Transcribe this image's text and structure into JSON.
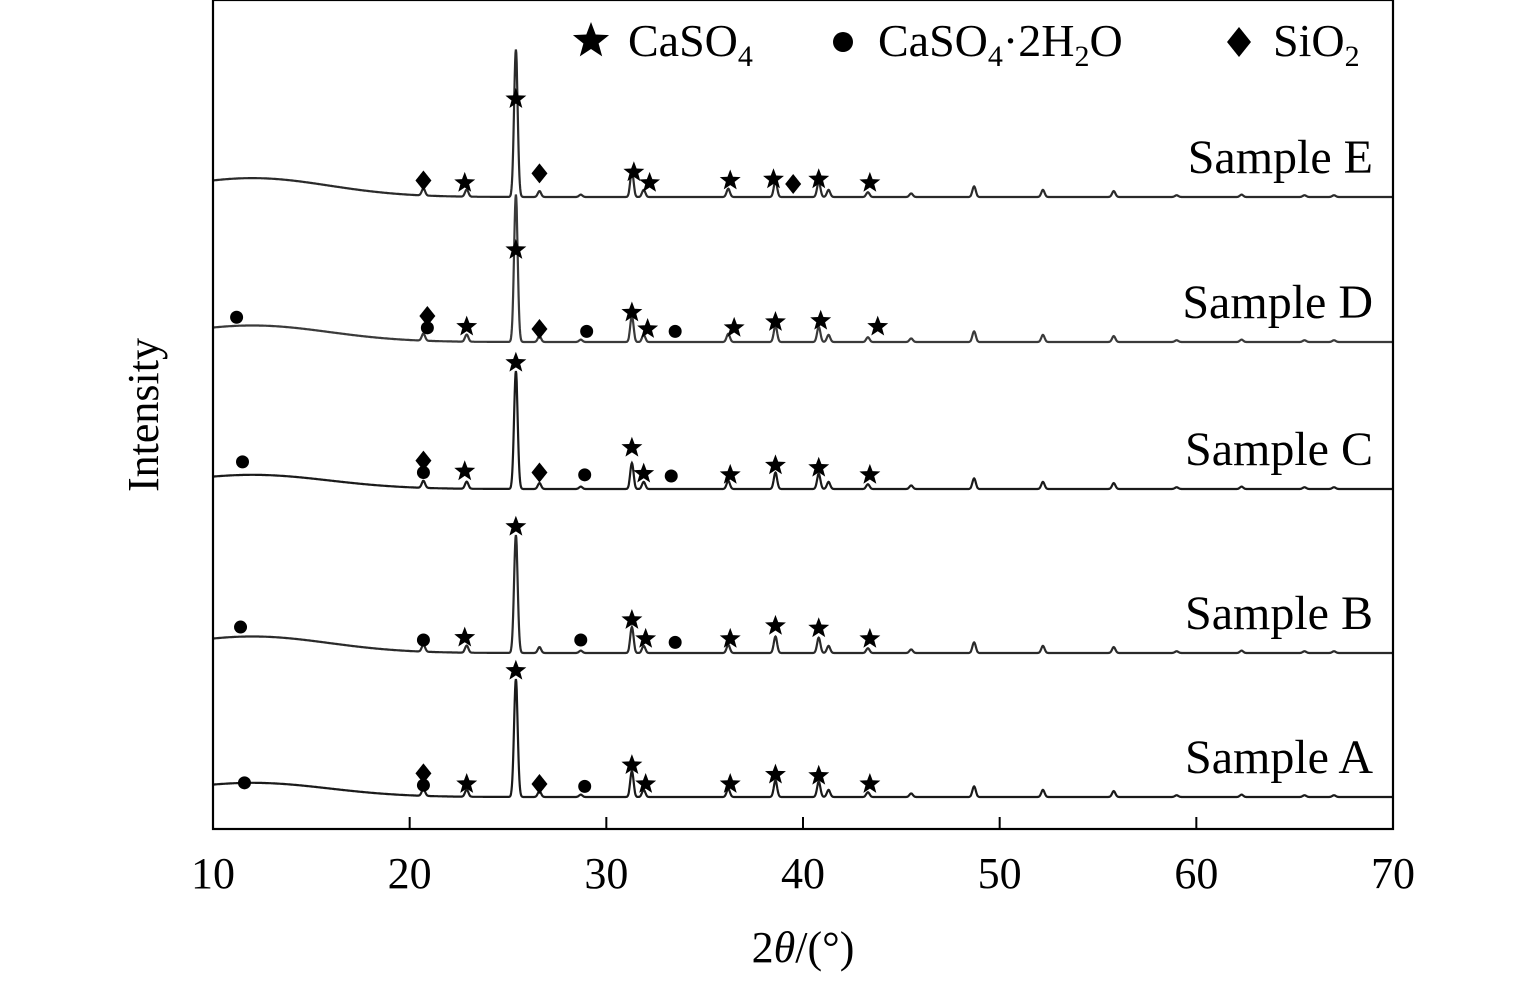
{
  "chart_data": {
    "type": "line",
    "xlabel_prefix": "2",
    "xlabel_theta": "θ",
    "xlabel_suffix": "/(°)",
    "ylabel": "Intensity",
    "xlim": [
      10,
      70
    ],
    "xticks": [
      10,
      20,
      30,
      40,
      50,
      60,
      70
    ],
    "xtick_labels": [
      "10",
      "20",
      "30",
      "40",
      "50",
      "60",
      "70"
    ],
    "grid": false,
    "legend": {
      "placement": "top",
      "entries": [
        {
          "marker": "star",
          "text": "CaSO",
          "sub": "4",
          "rest": "",
          "sub2": "",
          "tail": ""
        },
        {
          "marker": "circle",
          "text": "CaSO",
          "sub": "4",
          "rest": "·2H",
          "sub2": "2",
          "tail": "O"
        },
        {
          "marker": "diamond",
          "text": "SiO",
          "sub": "2",
          "rest": "",
          "sub2": "",
          "tail": ""
        }
      ]
    },
    "common_peaks": [
      {
        "x": 20.7,
        "h": 0.06
      },
      {
        "x": 22.9,
        "h": 0.06
      },
      {
        "x": 25.4,
        "h": 1.0
      },
      {
        "x": 26.6,
        "h": 0.05
      },
      {
        "x": 28.7,
        "h": 0.02
      },
      {
        "x": 31.3,
        "h": 0.22
      },
      {
        "x": 31.9,
        "h": 0.06
      },
      {
        "x": 36.2,
        "h": 0.07
      },
      {
        "x": 38.6,
        "h": 0.14
      },
      {
        "x": 40.8,
        "h": 0.13
      },
      {
        "x": 41.3,
        "h": 0.06
      },
      {
        "x": 43.3,
        "h": 0.04
      },
      {
        "x": 45.5,
        "h": 0.03
      },
      {
        "x": 48.7,
        "h": 0.09
      },
      {
        "x": 52.2,
        "h": 0.06
      },
      {
        "x": 55.8,
        "h": 0.05
      },
      {
        "x": 59.0,
        "h": 0.015
      },
      {
        "x": 62.3,
        "h": 0.02
      },
      {
        "x": 65.5,
        "h": 0.015
      },
      {
        "x": 67.0,
        "h": 0.015
      }
    ],
    "series": [
      {
        "name": "Sample A",
        "label": "Sample A",
        "offset": 0,
        "color": "#1a1a1a",
        "hump": 0.12,
        "markers": [
          {
            "type": "circle",
            "x": 11.6,
            "level": 0.12
          },
          {
            "type": "diamond",
            "x": 20.7,
            "level": 0.2
          },
          {
            "type": "circle",
            "x": 20.7,
            "level": 0.1
          },
          {
            "type": "star",
            "x": 22.9,
            "level": 0.11
          },
          {
            "type": "star",
            "x": 25.4,
            "level": 1.07
          },
          {
            "type": "diamond",
            "x": 26.6,
            "level": 0.11
          },
          {
            "type": "circle",
            "x": 28.9,
            "level": 0.09
          },
          {
            "type": "star",
            "x": 31.3,
            "level": 0.27
          },
          {
            "type": "star",
            "x": 32.0,
            "level": 0.11
          },
          {
            "type": "star",
            "x": 36.3,
            "level": 0.11
          },
          {
            "type": "star",
            "x": 38.6,
            "level": 0.19
          },
          {
            "type": "star",
            "x": 40.8,
            "level": 0.18
          },
          {
            "type": "star",
            "x": 43.4,
            "level": 0.11
          }
        ]
      },
      {
        "name": "Sample B",
        "label": "Sample B",
        "offset": 1,
        "color": "#2a2a2a",
        "hump": 0.14,
        "markers": [
          {
            "type": "circle",
            "x": 11.4,
            "level": 0.22
          },
          {
            "type": "circle",
            "x": 20.7,
            "level": 0.11
          },
          {
            "type": "star",
            "x": 22.8,
            "level": 0.13
          },
          {
            "type": "star",
            "x": 25.4,
            "level": 1.07
          },
          {
            "type": "circle",
            "x": 28.7,
            "level": 0.11
          },
          {
            "type": "star",
            "x": 31.3,
            "level": 0.28
          },
          {
            "type": "star",
            "x": 32.0,
            "level": 0.12
          },
          {
            "type": "circle",
            "x": 33.5,
            "level": 0.09
          },
          {
            "type": "star",
            "x": 36.3,
            "level": 0.12
          },
          {
            "type": "star",
            "x": 38.6,
            "level": 0.23
          },
          {
            "type": "star",
            "x": 40.8,
            "level": 0.21
          },
          {
            "type": "star",
            "x": 43.4,
            "level": 0.12
          }
        ]
      },
      {
        "name": "Sample C",
        "label": "Sample C",
        "offset": 2,
        "color": "#1a1a1a",
        "hump": 0.12,
        "markers": [
          {
            "type": "circle",
            "x": 11.5,
            "level": 0.23
          },
          {
            "type": "diamond",
            "x": 20.7,
            "level": 0.24
          },
          {
            "type": "circle",
            "x": 20.7,
            "level": 0.14
          },
          {
            "type": "star",
            "x": 22.8,
            "level": 0.15
          },
          {
            "type": "star",
            "x": 25.4,
            "level": 1.07
          },
          {
            "type": "diamond",
            "x": 26.6,
            "level": 0.14
          },
          {
            "type": "circle",
            "x": 28.9,
            "level": 0.12
          },
          {
            "type": "star",
            "x": 31.3,
            "level": 0.35
          },
          {
            "type": "star",
            "x": 31.9,
            "level": 0.13
          },
          {
            "type": "circle",
            "x": 33.3,
            "level": 0.11
          },
          {
            "type": "star",
            "x": 36.3,
            "level": 0.12
          },
          {
            "type": "star",
            "x": 38.6,
            "level": 0.2
          },
          {
            "type": "star",
            "x": 40.8,
            "level": 0.18
          },
          {
            "type": "star",
            "x": 43.4,
            "level": 0.12
          }
        ]
      },
      {
        "name": "Sample D",
        "label": "Sample D",
        "offset": 3,
        "color": "#3a3a3a",
        "hump": 0.14,
        "markers": [
          {
            "type": "circle",
            "x": 11.2,
            "level": 0.21
          },
          {
            "type": "diamond",
            "x": 20.9,
            "level": 0.22
          },
          {
            "type": "circle",
            "x": 20.9,
            "level": 0.12
          },
          {
            "type": "star",
            "x": 22.9,
            "level": 0.13
          },
          {
            "type": "star",
            "x": 25.4,
            "level": 0.78
          },
          {
            "type": "diamond",
            "x": 26.6,
            "level": 0.11
          },
          {
            "type": "circle",
            "x": 29.0,
            "level": 0.09
          },
          {
            "type": "star",
            "x": 31.3,
            "level": 0.25
          },
          {
            "type": "star",
            "x": 32.1,
            "level": 0.11
          },
          {
            "type": "circle",
            "x": 33.5,
            "level": 0.09
          },
          {
            "type": "star",
            "x": 36.5,
            "level": 0.12
          },
          {
            "type": "star",
            "x": 38.6,
            "level": 0.17
          },
          {
            "type": "star",
            "x": 40.9,
            "level": 0.18
          },
          {
            "type": "star",
            "x": 43.8,
            "level": 0.13
          }
        ]
      },
      {
        "name": "Sample E",
        "label": "Sample E",
        "offset": 4,
        "color": "#2a2a2a",
        "hump": 0.16,
        "markers": [
          {
            "type": "diamond",
            "x": 20.7,
            "level": 0.14
          },
          {
            "type": "star",
            "x": 22.8,
            "level": 0.12
          },
          {
            "type": "star",
            "x": 25.4,
            "level": 0.83
          },
          {
            "type": "diamond",
            "x": 26.6,
            "level": 0.2
          },
          {
            "type": "star",
            "x": 31.4,
            "level": 0.21
          },
          {
            "type": "star",
            "x": 32.2,
            "level": 0.12
          },
          {
            "type": "star",
            "x": 36.3,
            "level": 0.14
          },
          {
            "type": "star",
            "x": 38.5,
            "level": 0.15
          },
          {
            "type": "diamond",
            "x": 39.5,
            "level": 0.11
          },
          {
            "type": "star",
            "x": 40.8,
            "level": 0.15
          },
          {
            "type": "star",
            "x": 43.4,
            "level": 0.12
          }
        ]
      }
    ]
  }
}
